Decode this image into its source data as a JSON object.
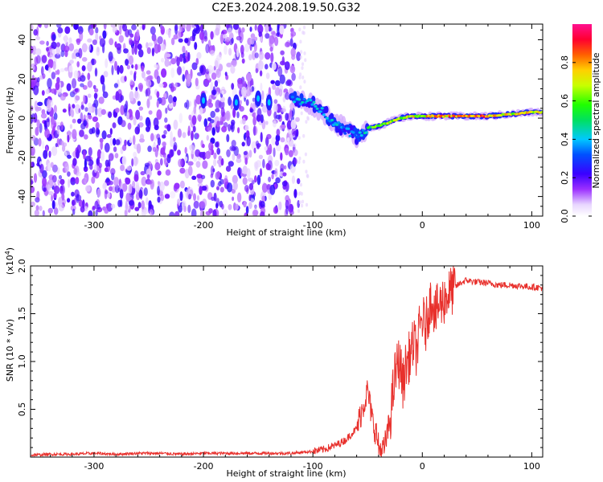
{
  "title": "C2E3.2024.208.19.50.G32",
  "chart_data": [
    {
      "type": "heatmap",
      "xlabel": "Height of straight line (km)",
      "ylabel": "Frequency (Hz)",
      "xlim": [
        -358,
        110
      ],
      "ylim": [
        -50,
        48
      ],
      "x_ticks": [
        -300,
        -200,
        -100,
        0,
        100
      ],
      "x_tick_labels": [
        "-300",
        "-200",
        "-100",
        "0",
        "100"
      ],
      "y_ticks": [
        -40,
        -20,
        0,
        20,
        40
      ],
      "y_tick_labels": [
        "-40",
        "-20",
        "0",
        "20",
        "40"
      ],
      "colorbar": {
        "label": "Normalized spectral amplitude",
        "range": [
          0,
          1
        ],
        "ticks": [
          0.0,
          0.2,
          0.4,
          0.6,
          0.8
        ],
        "tick_labels": [
          "0.0",
          "0.2",
          "0.4",
          "0.6",
          "0.8"
        ]
      },
      "noise_region_x": [
        -358,
        -113
      ],
      "ridge": [
        {
          "x": -120,
          "y": 10,
          "amp": 0.4
        },
        {
          "x": -110,
          "y": 9,
          "amp": 0.45
        },
        {
          "x": -100,
          "y": 7,
          "amp": 0.45
        },
        {
          "x": -90,
          "y": 3,
          "amp": 0.4
        },
        {
          "x": -80,
          "y": -2,
          "amp": 0.45
        },
        {
          "x": -70,
          "y": -6,
          "amp": 0.4
        },
        {
          "x": -60,
          "y": -9,
          "amp": 0.35
        },
        {
          "x": -50,
          "y": -5,
          "amp": 0.55
        },
        {
          "x": -40,
          "y": -4,
          "amp": 0.7
        },
        {
          "x": -30,
          "y": -2,
          "amp": 0.75
        },
        {
          "x": -20,
          "y": 0,
          "amp": 0.7
        },
        {
          "x": -10,
          "y": 1,
          "amp": 0.75
        },
        {
          "x": 0,
          "y": 1,
          "amp": 0.8
        },
        {
          "x": 20,
          "y": 1,
          "amp": 0.85
        },
        {
          "x": 40,
          "y": 1,
          "amp": 0.9
        },
        {
          "x": 60,
          "y": 1,
          "amp": 0.9
        },
        {
          "x": 80,
          "y": 2,
          "amp": 0.75
        },
        {
          "x": 100,
          "y": 3,
          "amp": 0.8
        },
        {
          "x": 110,
          "y": 3,
          "amp": 0.8
        }
      ],
      "hotspots": [
        {
          "x": -200,
          "y": 9
        },
        {
          "x": -170,
          "y": 8
        },
        {
          "x": -150,
          "y": 10
        },
        {
          "x": -140,
          "y": 8
        }
      ]
    },
    {
      "type": "line",
      "xlabel": "Height of straight line (km)",
      "ylabel": "SNR (10 * v/v)",
      "y_multiplier": "(x10",
      "y_multiplier_exp": "4",
      "xlim": [
        -358,
        110
      ],
      "ylim": [
        0,
        2.0
      ],
      "x_ticks": [
        -300,
        -200,
        -100,
        0,
        100
      ],
      "x_tick_labels": [
        "-300",
        "-200",
        "-100",
        "0",
        "100"
      ],
      "y_ticks": [
        0.5,
        1.0,
        1.5,
        2.0
      ],
      "y_tick_labels": [
        "0.5",
        "1.0",
        "1.5",
        "2.0"
      ],
      "color": "#e8302c",
      "series": [
        {
          "x": [
            -358,
            -340,
            -320,
            -300,
            -280,
            -260,
            -240,
            -220,
            -200,
            -180,
            -160,
            -140,
            -120,
            -110,
            -100,
            -90,
            -80,
            -70,
            -60,
            -55,
            -50,
            -48,
            -45,
            -42,
            -40,
            -37,
            -35,
            -30,
            -28,
            -25,
            -22,
            -20,
            -18,
            -15,
            -12,
            -10,
            -8,
            -5,
            -3,
            0,
            3,
            6,
            9,
            10,
            12,
            15,
            18,
            20,
            25,
            30,
            35,
            40,
            45,
            50,
            60,
            70,
            80,
            90,
            100,
            110
          ],
          "y": [
            0.02,
            0.03,
            0.03,
            0.04,
            0.03,
            0.04,
            0.04,
            0.03,
            0.04,
            0.04,
            0.04,
            0.04,
            0.04,
            0.05,
            0.06,
            0.08,
            0.12,
            0.18,
            0.3,
            0.5,
            0.7,
            0.55,
            0.35,
            0.25,
            0.1,
            0.06,
            0.08,
            0.35,
            0.55,
            0.85,
            1.0,
            0.95,
            0.75,
            0.95,
            1.05,
            1.1,
            1.2,
            1.1,
            1.3,
            1.45,
            1.35,
            1.55,
            1.7,
            1.6,
            1.5,
            1.58,
            1.62,
            1.65,
            1.72,
            1.78,
            1.82,
            1.85,
            1.84,
            1.83,
            1.82,
            1.8,
            1.8,
            1.79,
            1.78,
            1.77
          ]
        }
      ]
    }
  ]
}
